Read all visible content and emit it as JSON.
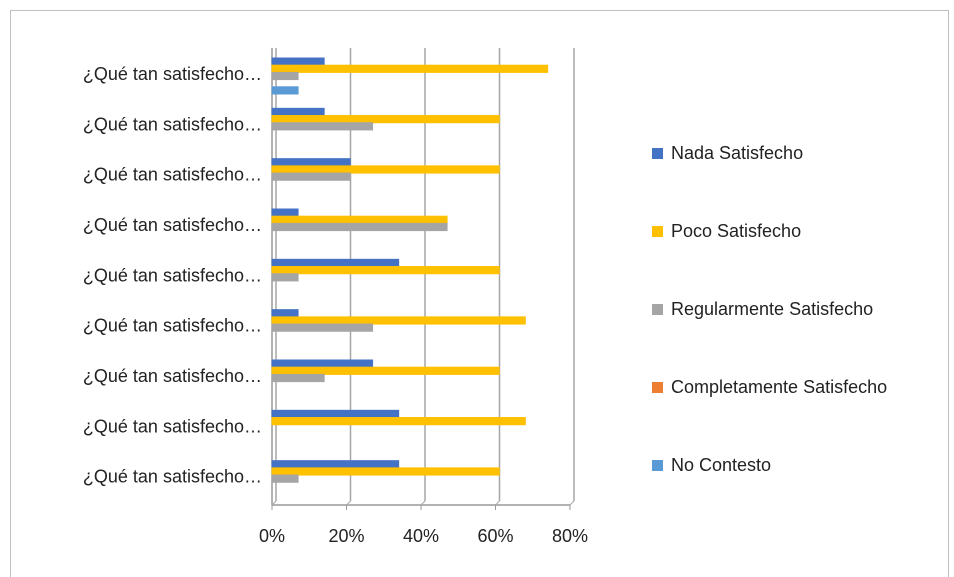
{
  "chart_data": {
    "type": "bar",
    "orientation": "horizontal",
    "categories": [
      "¿Qué tan satisfecho…",
      "¿Qué tan satisfecho…",
      "¿Qué tan satisfecho…",
      "¿Qué tan satisfecho…",
      "¿Qué tan satisfecho…",
      "¿Qué tan satisfecho…",
      "¿Qué tan satisfecho…",
      "¿Qué tan satisfecho…",
      "¿Qué tan satisfecho…"
    ],
    "series": [
      {
        "name": "Nada Satisfecho",
        "color": "#4472c4",
        "values": [
          14,
          14,
          21,
          7,
          34,
          7,
          27,
          34,
          34
        ]
      },
      {
        "name": "Poco Satisfecho",
        "color": "#ffc000",
        "values": [
          74,
          61,
          61,
          47,
          61,
          68,
          61,
          68,
          61
        ]
      },
      {
        "name": "Regularmente Satisfecho",
        "color": "#a5a5a5",
        "values": [
          7,
          27,
          21,
          47,
          7,
          27,
          14,
          0,
          7
        ]
      },
      {
        "name": "Completamente Satisfecho",
        "color": "#ed7d31",
        "values": [
          0,
          0,
          0,
          0,
          0,
          0,
          0,
          0,
          0
        ]
      },
      {
        "name": "No Contesto",
        "color": "#5b9bd5",
        "values": [
          7,
          0,
          0,
          0,
          0,
          0,
          0,
          0,
          0
        ]
      }
    ],
    "xlim": [
      0,
      80
    ],
    "xticks": [
      {
        "value": 0,
        "label": "0%"
      },
      {
        "value": 20,
        "label": "20%"
      },
      {
        "value": 40,
        "label": "40%"
      },
      {
        "value": 60,
        "label": "60%"
      },
      {
        "value": 80,
        "label": "80%"
      }
    ],
    "grid": true,
    "legend": "right"
  }
}
